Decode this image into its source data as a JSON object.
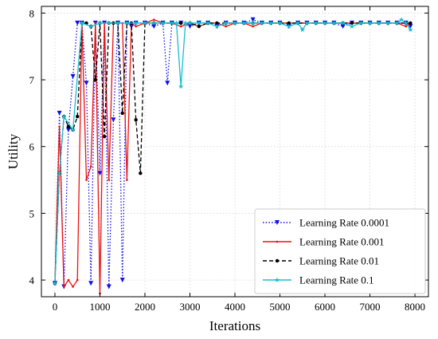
{
  "chart_data": {
    "type": "line",
    "xlabel": "Iterations",
    "ylabel": "Utility",
    "xlim": [
      -300,
      8300
    ],
    "ylim": [
      3.75,
      8.1
    ],
    "xticks": [
      0,
      1000,
      2000,
      3000,
      4000,
      5000,
      6000,
      7000,
      8000
    ],
    "yticks": [
      4,
      5,
      6,
      7,
      8
    ],
    "grid": true,
    "legend_position": "bottom-right",
    "series": [
      {
        "name": "Learning Rate 0.0001",
        "color": "#1010ee",
        "dash": "dotted",
        "marker": "triangle-down",
        "x": [
          0,
          100,
          200,
          300,
          400,
          500,
          600,
          700,
          800,
          900,
          1000,
          1100,
          1200,
          1300,
          1400,
          1500,
          1600,
          1700,
          1800,
          2000,
          2200,
          2400,
          2500,
          2600,
          2800,
          3000,
          3200,
          3400,
          3600,
          3800,
          4000,
          4200,
          4400,
          4600,
          4800,
          5000,
          5200,
          5400,
          5600,
          5800,
          6000,
          6200,
          6400,
          6600,
          6800,
          7000,
          7200,
          7400,
          7600,
          7800,
          7900
        ],
        "y": [
          3.95,
          6.5,
          3.9,
          6.25,
          7.05,
          7.85,
          7.85,
          6.95,
          3.95,
          7.85,
          5.6,
          7.85,
          3.9,
          6.4,
          7.85,
          4.0,
          7.85,
          7.8,
          7.85,
          7.85,
          7.8,
          7.85,
          6.95,
          7.85,
          7.85,
          7.8,
          7.85,
          7.85,
          7.8,
          7.85,
          7.85,
          7.85,
          7.9,
          7.85,
          7.85,
          7.85,
          7.8,
          7.85,
          7.85,
          7.85,
          7.85,
          7.85,
          7.8,
          7.85,
          7.85,
          7.85,
          7.85,
          7.85,
          7.85,
          7.85,
          7.8
        ]
      },
      {
        "name": "Learning Rate 0.001",
        "color": "#ee1010",
        "dash": "solid",
        "marker": "dot-small",
        "x": [
          0,
          100,
          200,
          300,
          400,
          500,
          600,
          700,
          800,
          900,
          1000,
          1100,
          1200,
          1300,
          1400,
          1500,
          1600,
          1700,
          1800,
          2000,
          2200,
          2400,
          2600,
          2800,
          3000,
          3200,
          3400,
          3600,
          3800,
          4000,
          4200,
          4400,
          4600,
          4800,
          5000,
          5200,
          5400,
          5600,
          5800,
          6000,
          6200,
          6400,
          6600,
          6800,
          7000,
          7200,
          7400,
          7600,
          7800,
          7900
        ],
        "y": [
          3.95,
          6.3,
          3.9,
          4.0,
          3.9,
          4.0,
          7.85,
          5.5,
          5.7,
          7.85,
          3.8,
          7.85,
          5.5,
          7.85,
          7.85,
          7.85,
          5.5,
          7.85,
          7.8,
          7.85,
          7.9,
          7.85,
          7.85,
          7.8,
          7.85,
          7.8,
          7.85,
          7.85,
          7.8,
          7.85,
          7.85,
          7.8,
          7.85,
          7.85,
          7.85,
          7.85,
          7.85,
          7.85,
          7.85,
          7.85,
          7.85,
          7.85,
          7.85,
          7.85,
          7.85,
          7.85,
          7.85,
          7.85,
          7.8,
          7.85
        ]
      },
      {
        "name": "Learning Rate 0.01",
        "color": "#000000",
        "dash": "dashed",
        "marker": "circle",
        "x": [
          0,
          100,
          200,
          300,
          400,
          500,
          600,
          700,
          800,
          900,
          1000,
          1100,
          1200,
          1300,
          1400,
          1500,
          1600,
          1700,
          1800,
          1900,
          2000,
          2200,
          2400,
          2600,
          2800,
          3000,
          3200,
          3400,
          3600,
          3800,
          4000,
          4200,
          4400,
          4600,
          4800,
          5000,
          5200,
          5400,
          5600,
          5800,
          6000,
          6200,
          6400,
          6600,
          6800,
          7000,
          7200,
          7400,
          7600,
          7800,
          7900
        ],
        "y": [
          3.95,
          5.6,
          6.45,
          6.3,
          6.25,
          6.45,
          7.85,
          7.85,
          7.8,
          7.0,
          7.85,
          6.15,
          7.85,
          7.85,
          7.85,
          6.5,
          7.85,
          7.85,
          6.4,
          5.6,
          7.85,
          7.85,
          7.85,
          7.85,
          7.85,
          7.85,
          7.8,
          7.85,
          7.85,
          7.85,
          7.85,
          7.85,
          7.85,
          7.85,
          7.85,
          7.85,
          7.85,
          7.85,
          7.85,
          7.85,
          7.85,
          7.85,
          7.85,
          7.85,
          7.85,
          7.85,
          7.85,
          7.85,
          7.85,
          7.85,
          7.85
        ]
      },
      {
        "name": "Learning Rate 0.1",
        "color": "#17becf",
        "dash": "solid",
        "marker": "star",
        "x": [
          0,
          100,
          200,
          400,
          600,
          800,
          1000,
          1200,
          1400,
          1600,
          1800,
          2000,
          2200,
          2400,
          2600,
          2700,
          2800,
          2900,
          3000,
          3200,
          3400,
          3600,
          3800,
          4000,
          4200,
          4400,
          4600,
          4800,
          5000,
          5200,
          5400,
          5500,
          5600,
          5800,
          6000,
          6200,
          6400,
          6600,
          6800,
          7000,
          7200,
          7400,
          7600,
          7700,
          7800,
          7900
        ],
        "y": [
          3.95,
          5.6,
          6.45,
          6.25,
          7.85,
          7.8,
          7.85,
          7.85,
          7.85,
          7.85,
          7.85,
          7.85,
          7.85,
          7.85,
          7.85,
          7.85,
          6.9,
          7.85,
          7.85,
          7.85,
          7.85,
          7.8,
          7.85,
          7.85,
          7.85,
          7.85,
          7.85,
          7.85,
          7.85,
          7.8,
          7.85,
          7.75,
          7.85,
          7.85,
          7.85,
          7.85,
          7.85,
          7.8,
          7.85,
          7.85,
          7.85,
          7.85,
          7.85,
          7.9,
          7.85,
          7.75
        ]
      }
    ]
  }
}
